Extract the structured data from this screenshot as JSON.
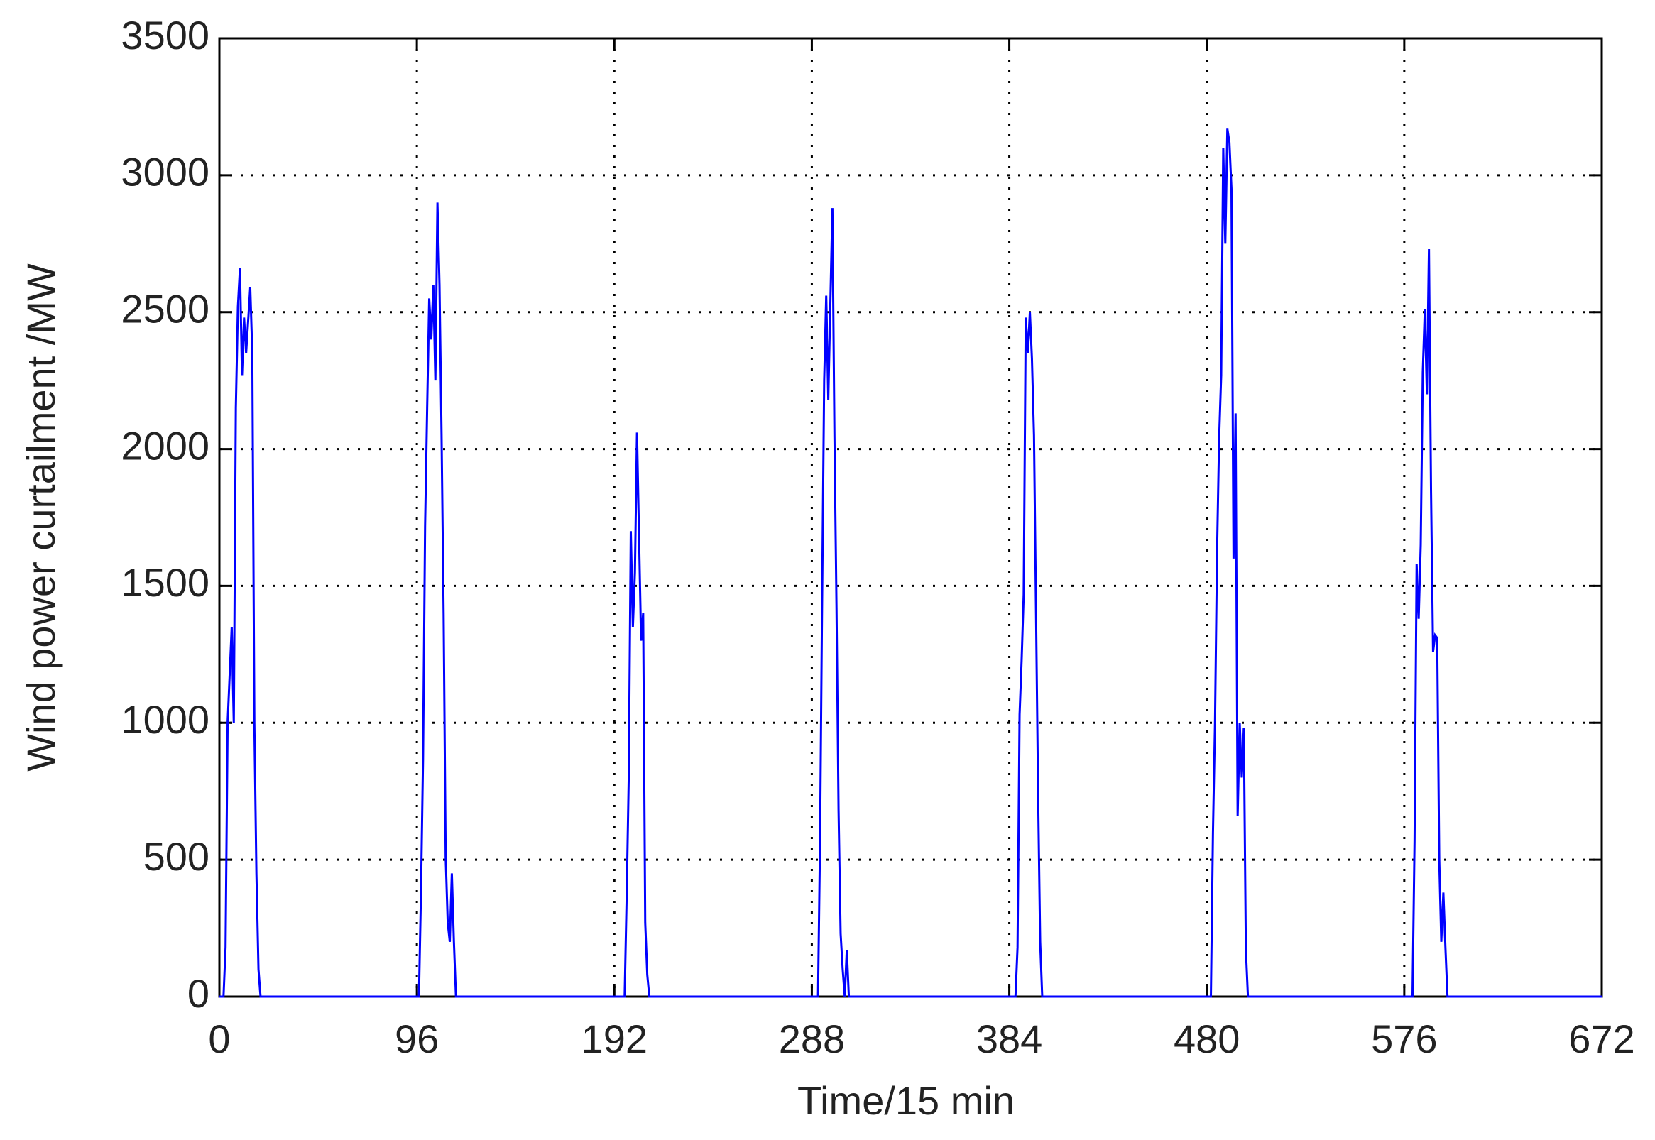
{
  "chart_data": {
    "type": "line",
    "xlabel": "Time/15 min",
    "ylabel": "Wind power curtailment /MW",
    "xlim": [
      0,
      672
    ],
    "xticks": [
      0,
      96,
      192,
      288,
      384,
      480,
      576,
      672
    ],
    "ylim": [
      0,
      3500
    ],
    "yticks": [
      0,
      500,
      1000,
      1500,
      2000,
      2500,
      3000,
      3500
    ],
    "grid": true,
    "series": [
      {
        "color": "#0000ff",
        "x": [
          0,
          2,
          3,
          4,
          6,
          7,
          8,
          9,
          10,
          11,
          12,
          13,
          15,
          16,
          17,
          18,
          19,
          20,
          97,
          98,
          99,
          100,
          101,
          102,
          103,
          104,
          105,
          106,
          107,
          108,
          109,
          110,
          111,
          112,
          113,
          114,
          115,
          197,
          198,
          199,
          200,
          201,
          202,
          203,
          204,
          205,
          206,
          207,
          208,
          209,
          291,
          292,
          293,
          294,
          295,
          296,
          297,
          298,
          299,
          300,
          301,
          302,
          303,
          304,
          305,
          306,
          387,
          388,
          389,
          390,
          391,
          392,
          393,
          394,
          395,
          396,
          397,
          398,
          399,
          400,
          482,
          483,
          484,
          485,
          486,
          487,
          488,
          489,
          490,
          491,
          492,
          493,
          494,
          495,
          496,
          497,
          498,
          499,
          500,
          580,
          581,
          582,
          583,
          584,
          585,
          586,
          587,
          588,
          589,
          590,
          591,
          592,
          593,
          594,
          595,
          596,
          597,
          672
        ],
        "values": [
          0,
          0,
          180,
          1000,
          1350,
          1000,
          2150,
          2520,
          2660,
          2270,
          2480,
          2350,
          2590,
          2350,
          1000,
          450,
          100,
          0,
          0,
          380,
          870,
          1720,
          2150,
          2550,
          2400,
          2600,
          2250,
          2900,
          2600,
          2050,
          1400,
          510,
          270,
          200,
          450,
          200,
          0,
          0,
          370,
          800,
          1700,
          1350,
          1550,
          2060,
          1680,
          1300,
          1400,
          270,
          80,
          0,
          0,
          570,
          1450,
          2250,
          2560,
          2180,
          2530,
          2880,
          2050,
          1420,
          680,
          230,
          100,
          0,
          170,
          0,
          0,
          180,
          1030,
          1230,
          1470,
          2480,
          2350,
          2500,
          2330,
          2050,
          1400,
          740,
          200,
          0,
          0,
          600,
          1000,
          1630,
          2040,
          2270,
          3100,
          2750,
          3170,
          3120,
          2950,
          1600,
          2130,
          660,
          1000,
          800,
          980,
          170,
          0,
          0,
          570,
          1580,
          1380,
          1650,
          2280,
          2510,
          2200,
          2730,
          1850,
          1260,
          1320,
          1310,
          500,
          200,
          380,
          180,
          0,
          0
        ]
      }
    ]
  }
}
